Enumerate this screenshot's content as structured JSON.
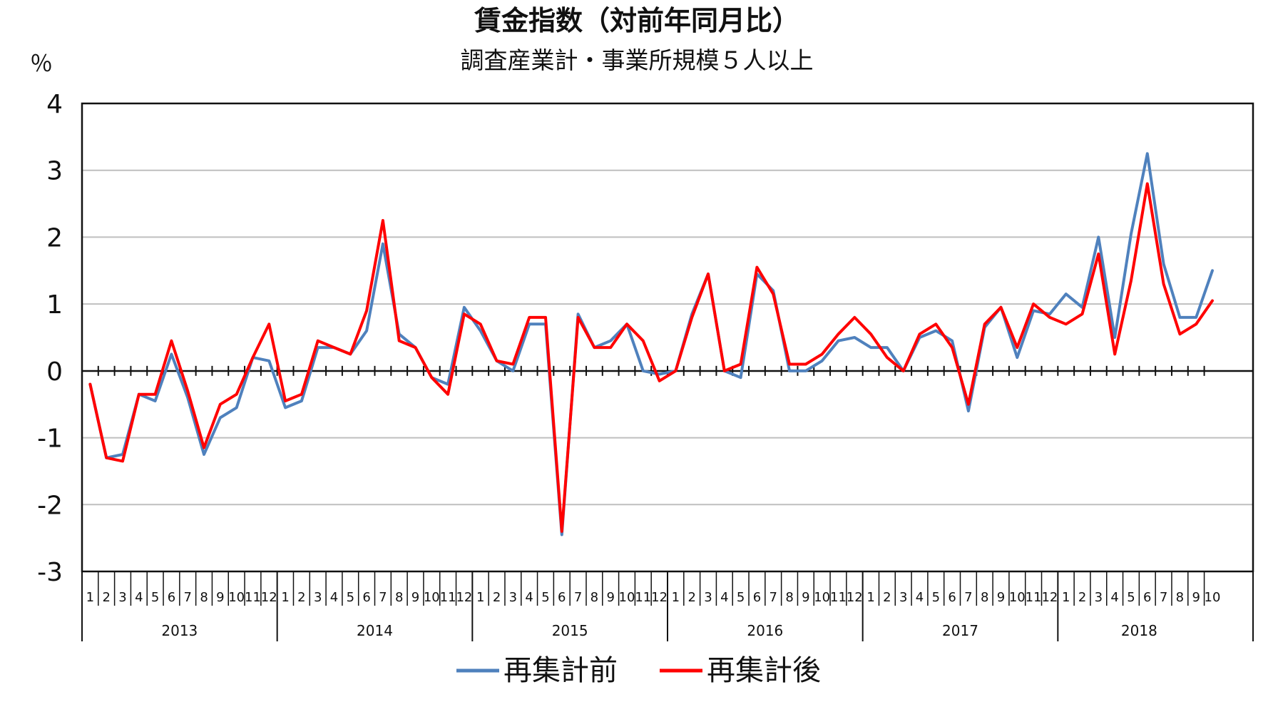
{
  "chart_data": {
    "type": "line",
    "title": "賃金指数（対前年同月比）",
    "subtitle": "調査産業計・事業所規模５人以上",
    "ylabel": "％",
    "ylim": [
      -3,
      4
    ],
    "yticks": [
      4,
      3,
      2,
      1,
      0,
      -1,
      -2,
      -3
    ],
    "grid": true,
    "legend_position": "bottom",
    "years": [
      {
        "label": "2013",
        "months": [
          "1",
          "2",
          "3",
          "4",
          "5",
          "6",
          "7",
          "8",
          "9",
          "10",
          "11",
          "12"
        ]
      },
      {
        "label": "2014",
        "months": [
          "1",
          "2",
          "3",
          "4",
          "5",
          "6",
          "7",
          "8",
          "9",
          "10",
          "11",
          "12"
        ]
      },
      {
        "label": "2015",
        "months": [
          "1",
          "2",
          "3",
          "4",
          "5",
          "6",
          "7",
          "8",
          "9",
          "10",
          "11",
          "12"
        ]
      },
      {
        "label": "2016",
        "months": [
          "1",
          "2",
          "3",
          "4",
          "5",
          "6",
          "7",
          "8",
          "9",
          "10",
          "11",
          "12"
        ]
      },
      {
        "label": "2017",
        "months": [
          "1",
          "2",
          "3",
          "4",
          "5",
          "6",
          "7",
          "8",
          "9",
          "10",
          "11",
          "12"
        ]
      },
      {
        "label": "2018",
        "months": [
          "1",
          "2",
          "3",
          "4",
          "5",
          "6",
          "7",
          "8",
          "9",
          "10"
        ]
      }
    ],
    "series": [
      {
        "name": "再集計前",
        "color": "#4f81bd",
        "values": [
          -0.2,
          -1.3,
          -1.25,
          -0.35,
          -0.45,
          0.25,
          -0.4,
          -1.25,
          -0.7,
          -0.55,
          0.2,
          0.15,
          -0.55,
          -0.45,
          0.35,
          0.35,
          0.25,
          0.6,
          1.9,
          0.55,
          0.35,
          -0.1,
          -0.2,
          0.95,
          0.6,
          0.15,
          0.0,
          0.7,
          0.7,
          -2.45,
          0.85,
          0.35,
          0.45,
          0.7,
          0.0,
          -0.05,
          0.0,
          0.85,
          1.45,
          0.0,
          -0.1,
          1.45,
          1.2,
          0.0,
          0.0,
          0.15,
          0.45,
          0.5,
          0.35,
          0.35,
          0.0,
          0.5,
          0.6,
          0.45,
          -0.6,
          0.65,
          0.95,
          0.2,
          0.9,
          0.85,
          1.15,
          0.95,
          2.0,
          0.5,
          2.05,
          3.25,
          1.6,
          0.8,
          0.8,
          1.5
        ]
      },
      {
        "name": "再集計後",
        "color": "#ff0000",
        "values": [
          -0.2,
          -1.3,
          -1.35,
          -0.35,
          -0.35,
          0.45,
          -0.3,
          -1.15,
          -0.5,
          -0.35,
          0.2,
          0.7,
          -0.45,
          -0.35,
          0.45,
          0.35,
          0.25,
          0.9,
          2.25,
          0.45,
          0.35,
          -0.1,
          -0.35,
          0.85,
          0.7,
          0.15,
          0.1,
          0.8,
          0.8,
          -2.4,
          0.8,
          0.35,
          0.35,
          0.7,
          0.45,
          -0.15,
          0.0,
          0.8,
          1.45,
          0.0,
          0.1,
          1.55,
          1.15,
          0.1,
          0.1,
          0.25,
          0.55,
          0.8,
          0.55,
          0.2,
          0.0,
          0.55,
          0.7,
          0.35,
          -0.5,
          0.7,
          0.95,
          0.35,
          1.0,
          0.8,
          0.7,
          0.85,
          1.75,
          0.25,
          1.35,
          2.8,
          1.3,
          0.55,
          0.7,
          1.05
        ]
      }
    ]
  }
}
